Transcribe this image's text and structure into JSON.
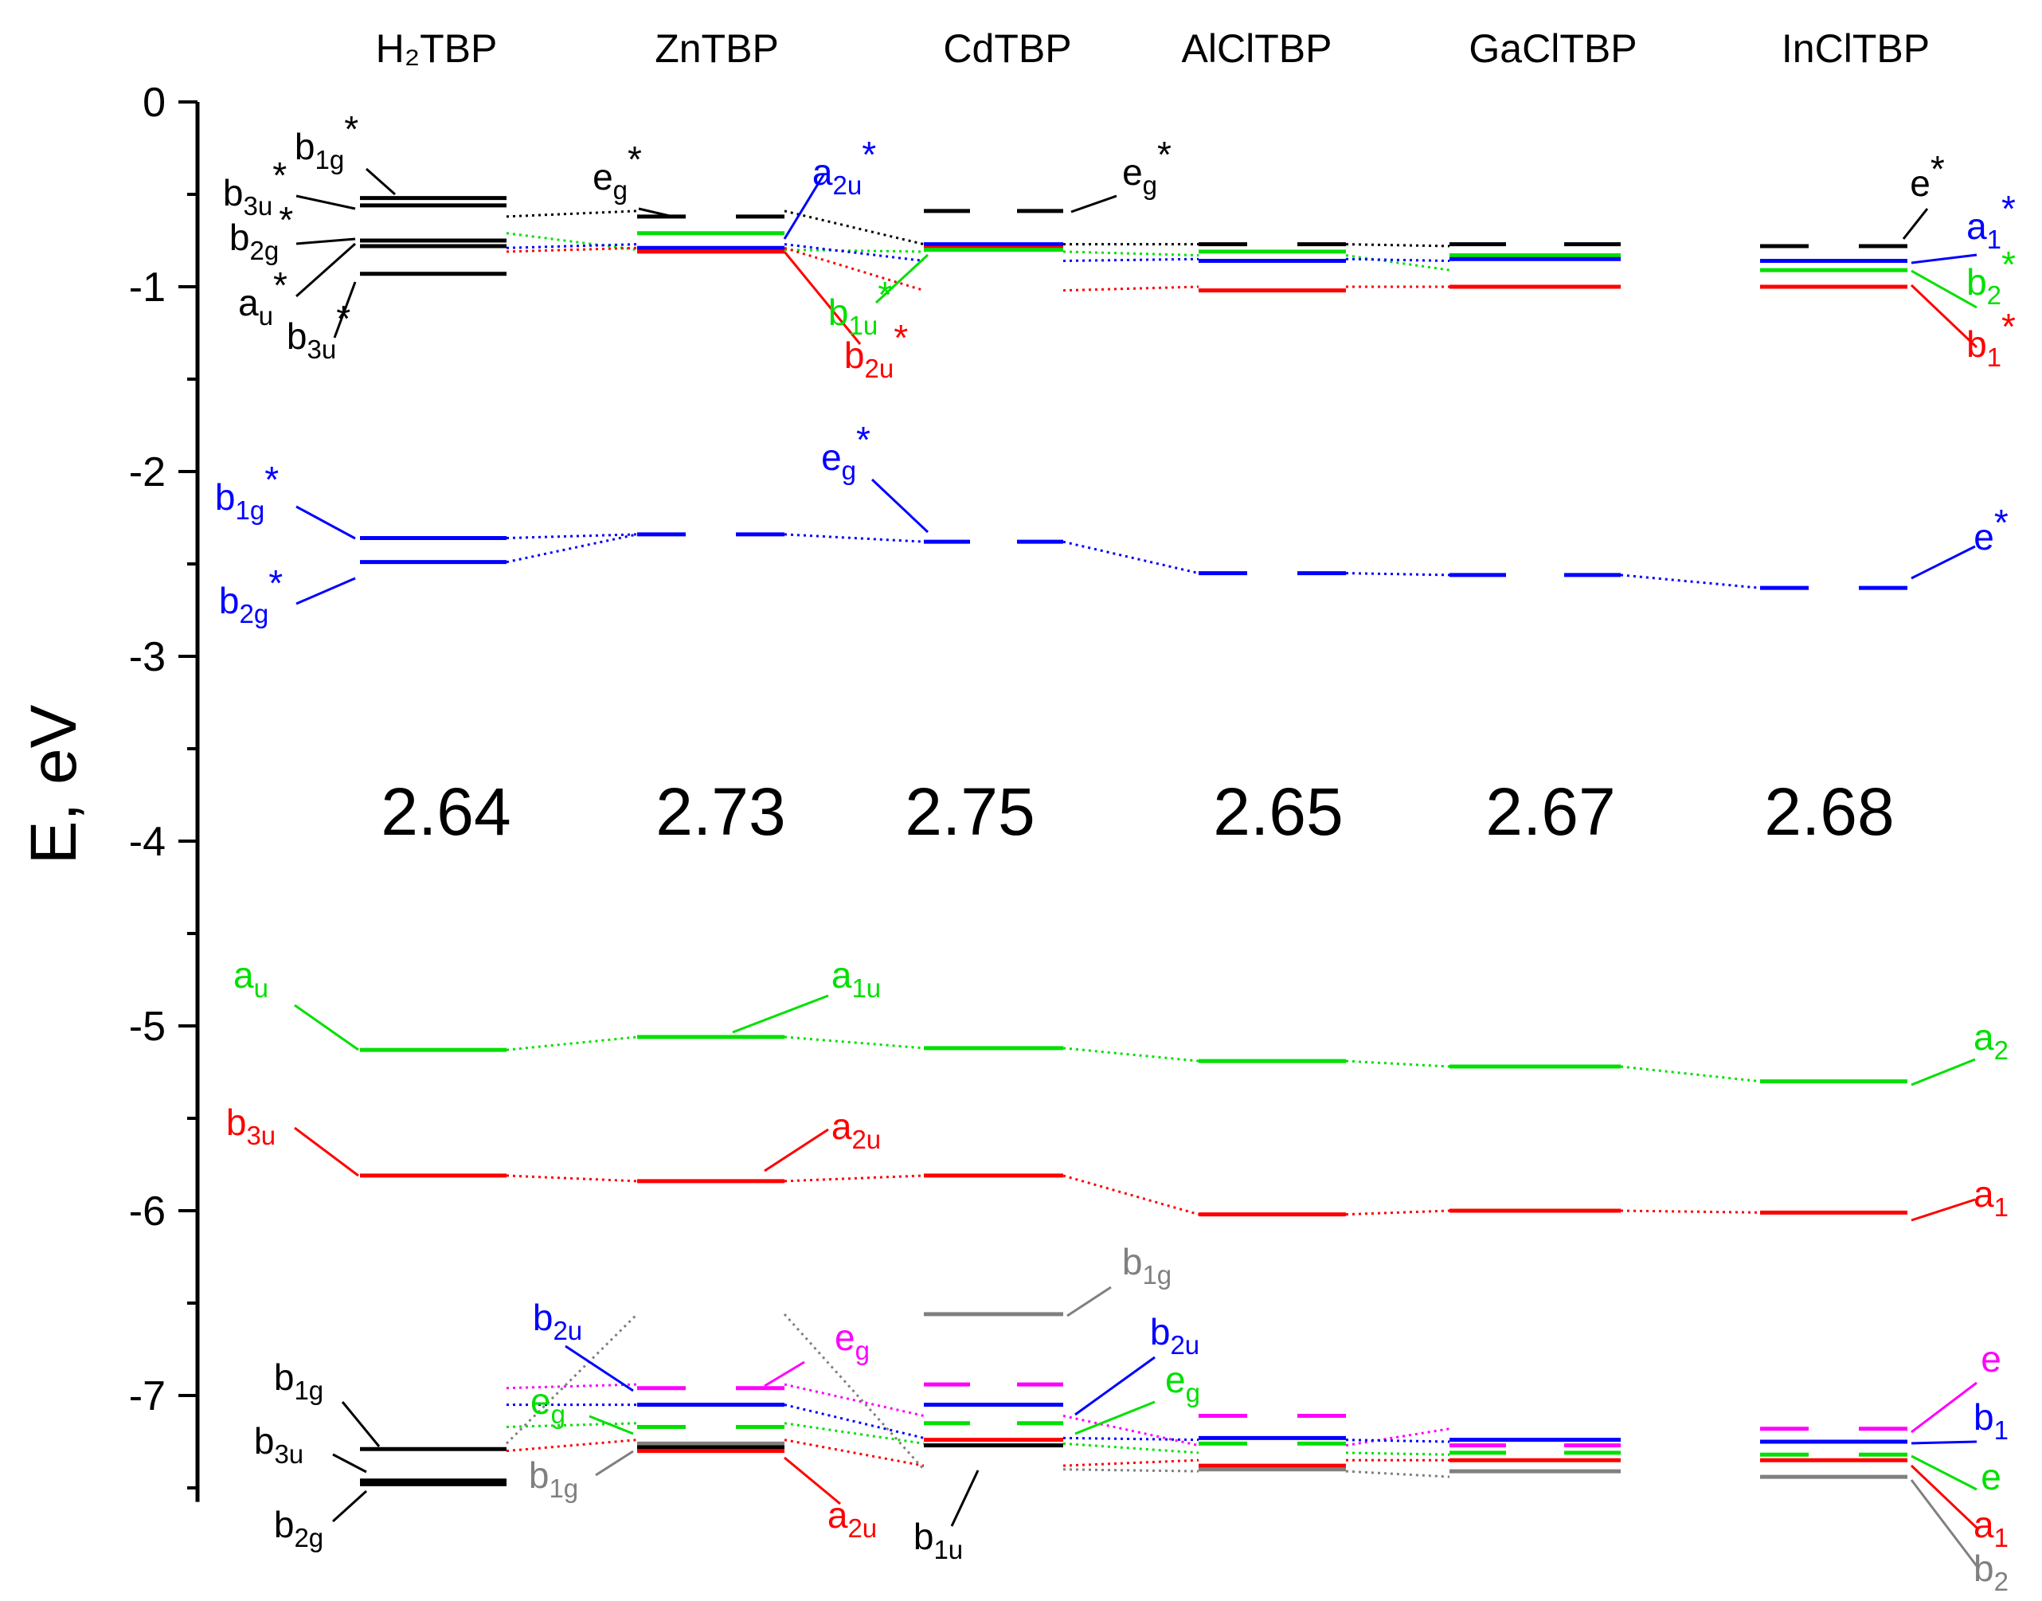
{
  "chart_data": {
    "type": "energy-level-diagram",
    "ylabel": "E, eV",
    "ylim": [
      -7.55,
      0
    ],
    "yticks": [
      0,
      -1,
      -2,
      -3,
      -4,
      -5,
      -6,
      -7
    ],
    "tick_labels": [
      "0",
      "-1",
      "-2",
      "-3",
      "-4",
      "-5",
      "-6",
      "-7"
    ],
    "colors": {
      "black": "#000000",
      "blue": "#0000ff",
      "green": "#00e000",
      "red": "#ff0000",
      "magenta": "#ff00ff",
      "gray": "#808080"
    },
    "compounds": [
      {
        "name": "H₂TBP",
        "gap": "2.64"
      },
      {
        "name": "ZnTBP",
        "gap": "2.73"
      },
      {
        "name": "CdTBP",
        "gap": "2.75"
      },
      {
        "name": "AlClTBP",
        "gap": "2.65"
      },
      {
        "name": "GaClTBP",
        "gap": "2.67"
      },
      {
        "name": "InClTBP",
        "gap": "2.68"
      }
    ],
    "levels": [
      {
        "compound": "H₂TBP",
        "energy": -0.52,
        "color": "black",
        "style": "solid",
        "label": "b1g*"
      },
      {
        "compound": "H₂TBP",
        "energy": -0.56,
        "color": "black",
        "style": "solid",
        "label": "b3u*"
      },
      {
        "compound": "H₂TBP",
        "energy": -0.75,
        "color": "black",
        "style": "solid",
        "label": "b2g*"
      },
      {
        "compound": "H₂TBP",
        "energy": -0.78,
        "color": "black",
        "style": "solid",
        "label": "au*"
      },
      {
        "compound": "H₂TBP",
        "energy": -0.93,
        "color": "black",
        "style": "solid",
        "label": "b3u*"
      },
      {
        "compound": "H₂TBP",
        "energy": -2.36,
        "color": "blue",
        "style": "solid",
        "label": "b1g*"
      },
      {
        "compound": "H₂TBP",
        "energy": -2.49,
        "color": "blue",
        "style": "solid",
        "label": "b2g*"
      },
      {
        "compound": "H₂TBP",
        "energy": -5.13,
        "color": "green",
        "style": "solid",
        "label": "au"
      },
      {
        "compound": "H₂TBP",
        "energy": -5.81,
        "color": "red",
        "style": "solid",
        "label": "b3u"
      },
      {
        "compound": "H₂TBP",
        "energy": -7.29,
        "color": "black",
        "style": "solid",
        "label": "b1g"
      },
      {
        "compound": "H₂TBP",
        "energy": -7.46,
        "color": "black",
        "style": "solid",
        "label": "b3u"
      },
      {
        "compound": "H₂TBP",
        "energy": -7.48,
        "color": "black",
        "style": "solid",
        "label": "b2g"
      },
      {
        "compound": "ZnTBP",
        "energy": -0.62,
        "color": "black",
        "style": "dashed",
        "label": "eg*"
      },
      {
        "compound": "ZnTBP",
        "energy": -0.71,
        "color": "green",
        "style": "solid",
        "label": "b1u*"
      },
      {
        "compound": "ZnTBP",
        "energy": -0.79,
        "color": "blue",
        "style": "solid",
        "label": "a2u*"
      },
      {
        "compound": "ZnTBP",
        "energy": -0.81,
        "color": "red",
        "style": "solid",
        "label": "b2u*"
      },
      {
        "compound": "ZnTBP",
        "energy": -2.34,
        "color": "blue",
        "style": "dashed",
        "label": "eg*"
      },
      {
        "compound": "ZnTBP",
        "energy": -5.06,
        "color": "green",
        "style": "solid",
        "label": "a1u"
      },
      {
        "compound": "ZnTBP",
        "energy": -5.84,
        "color": "red",
        "style": "solid",
        "label": "a2u"
      },
      {
        "compound": "ZnTBP",
        "energy": -6.96,
        "color": "magenta",
        "style": "dashed",
        "label": "eg"
      },
      {
        "compound": "ZnTBP",
        "energy": -7.05,
        "color": "blue",
        "style": "solid",
        "label": "b2u"
      },
      {
        "compound": "ZnTBP",
        "energy": -7.17,
        "color": "green",
        "style": "dashed",
        "label": "eg"
      },
      {
        "compound": "ZnTBP",
        "energy": -7.26,
        "color": "gray",
        "style": "solid",
        "label": "b1g"
      },
      {
        "compound": "ZnTBP",
        "energy": -7.28,
        "color": "black",
        "style": "solid",
        "label": "b1u"
      },
      {
        "compound": "ZnTBP",
        "energy": -7.3,
        "color": "red",
        "style": "solid",
        "label": "a2u"
      },
      {
        "compound": "CdTBP",
        "energy": -0.59,
        "color": "black",
        "style": "dashed",
        "label": "eg*"
      },
      {
        "compound": "CdTBP",
        "energy": -0.77,
        "color": "blue",
        "style": "solid",
        "label": "a2u*"
      },
      {
        "compound": "CdTBP",
        "energy": -0.79,
        "color": "red",
        "style": "solid",
        "label": "b2u*"
      },
      {
        "compound": "CdTBP",
        "energy": -0.8,
        "color": "green",
        "style": "solid",
        "label": "b1u*"
      },
      {
        "compound": "CdTBP",
        "energy": -2.38,
        "color": "blue",
        "style": "dashed",
        "label": "eg*"
      },
      {
        "compound": "CdTBP",
        "energy": -5.12,
        "color": "green",
        "style": "solid",
        "label": "a1u"
      },
      {
        "compound": "CdTBP",
        "energy": -5.81,
        "color": "red",
        "style": "solid",
        "label": "a2u"
      },
      {
        "compound": "CdTBP",
        "energy": -6.56,
        "color": "gray",
        "style": "solid",
        "label": "b1g"
      },
      {
        "compound": "CdTBP",
        "energy": -6.94,
        "color": "magenta",
        "style": "dashed",
        "label": "eg"
      },
      {
        "compound": "CdTBP",
        "energy": -7.05,
        "color": "blue",
        "style": "solid",
        "label": "b2u"
      },
      {
        "compound": "CdTBP",
        "energy": -7.15,
        "color": "green",
        "style": "dashed",
        "label": "eg"
      },
      {
        "compound": "CdTBP",
        "energy": -7.24,
        "color": "red",
        "style": "solid",
        "label": "a2u"
      },
      {
        "compound": "CdTBP",
        "energy": -7.27,
        "color": "black",
        "style": "solid",
        "label": "b1u"
      },
      {
        "compound": "AlClTBP",
        "energy": -0.77,
        "color": "black",
        "style": "dashed",
        "label": "e*"
      },
      {
        "compound": "AlClTBP",
        "energy": -0.81,
        "color": "green",
        "style": "solid",
        "label": "b2*"
      },
      {
        "compound": "AlClTBP",
        "energy": -0.86,
        "color": "blue",
        "style": "solid",
        "label": "a1*"
      },
      {
        "compound": "AlClTBP",
        "energy": -1.02,
        "color": "red",
        "style": "solid",
        "label": "b1*"
      },
      {
        "compound": "AlClTBP",
        "energy": -2.55,
        "color": "blue",
        "style": "dashed",
        "label": "e*"
      },
      {
        "compound": "AlClTBP",
        "energy": -5.19,
        "color": "green",
        "style": "solid",
        "label": "a2"
      },
      {
        "compound": "AlClTBP",
        "energy": -6.02,
        "color": "red",
        "style": "solid",
        "label": "a1"
      },
      {
        "compound": "AlClTBP",
        "energy": -7.11,
        "color": "magenta",
        "style": "dashed",
        "label": "e"
      },
      {
        "compound": "AlClTBP",
        "energy": -7.23,
        "color": "blue",
        "style": "solid",
        "label": "b1"
      },
      {
        "compound": "AlClTBP",
        "energy": -7.26,
        "color": "green",
        "style": "dashed",
        "label": "e"
      },
      {
        "compound": "AlClTBP",
        "energy": -7.38,
        "color": "red",
        "style": "solid",
        "label": "a1"
      },
      {
        "compound": "AlClTBP",
        "energy": -7.4,
        "color": "gray",
        "style": "solid",
        "label": "b2"
      },
      {
        "compound": "GaClTBP",
        "energy": -0.77,
        "color": "black",
        "style": "dashed",
        "label": "e*"
      },
      {
        "compound": "GaClTBP",
        "energy": -0.83,
        "color": "green",
        "style": "solid",
        "label": "b2*"
      },
      {
        "compound": "GaClTBP",
        "energy": -0.85,
        "color": "blue",
        "style": "solid",
        "label": "a1*"
      },
      {
        "compound": "GaClTBP",
        "energy": -1.0,
        "color": "red",
        "style": "solid",
        "label": "b1*"
      },
      {
        "compound": "GaClTBP",
        "energy": -2.56,
        "color": "blue",
        "style": "dashed",
        "label": "e*"
      },
      {
        "compound": "GaClTBP",
        "energy": -5.22,
        "color": "green",
        "style": "solid",
        "label": "a2"
      },
      {
        "compound": "GaClTBP",
        "energy": -6.0,
        "color": "red",
        "style": "solid",
        "label": "a1"
      },
      {
        "compound": "GaClTBP",
        "energy": -7.24,
        "color": "blue",
        "style": "solid",
        "label": "b1"
      },
      {
        "compound": "GaClTBP",
        "energy": -7.27,
        "color": "magenta",
        "style": "dashed",
        "label": "e"
      },
      {
        "compound": "GaClTBP",
        "energy": -7.31,
        "color": "green",
        "style": "dashed",
        "label": "e"
      },
      {
        "compound": "GaClTBP",
        "energy": -7.35,
        "color": "red",
        "style": "solid",
        "label": "a1"
      },
      {
        "compound": "GaClTBP",
        "energy": -7.41,
        "color": "gray",
        "style": "solid",
        "label": "b2"
      },
      {
        "compound": "InClTBP",
        "energy": -0.78,
        "color": "black",
        "style": "dashed",
        "label": "e*"
      },
      {
        "compound": "InClTBP",
        "energy": -0.86,
        "color": "blue",
        "style": "solid",
        "label": "a1*"
      },
      {
        "compound": "InClTBP",
        "energy": -0.91,
        "color": "green",
        "style": "solid",
        "label": "b2*"
      },
      {
        "compound": "InClTBP",
        "energy": -1.0,
        "color": "red",
        "style": "solid",
        "label": "b1*"
      },
      {
        "compound": "InClTBP",
        "energy": -2.63,
        "color": "blue",
        "style": "dashed",
        "label": "e*"
      },
      {
        "compound": "InClTBP",
        "energy": -5.3,
        "color": "green",
        "style": "solid",
        "label": "a2"
      },
      {
        "compound": "InClTBP",
        "energy": -6.01,
        "color": "red",
        "style": "solid",
        "label": "a1"
      },
      {
        "compound": "InClTBP",
        "energy": -7.18,
        "color": "magenta",
        "style": "dashed",
        "label": "e"
      },
      {
        "compound": "InClTBP",
        "energy": -7.25,
        "color": "blue",
        "style": "solid",
        "label": "b1"
      },
      {
        "compound": "InClTBP",
        "energy": -7.32,
        "color": "green",
        "style": "dashed",
        "label": "e"
      },
      {
        "compound": "InClTBP",
        "energy": -7.35,
        "color": "red",
        "style": "solid",
        "label": "a1"
      },
      {
        "compound": "InClTBP",
        "energy": -7.44,
        "color": "gray",
        "style": "solid",
        "label": "b2"
      }
    ],
    "correlation_lines": [
      {
        "color": "blue",
        "energies": [
          -2.36,
          -2.34
        ]
      },
      {
        "color": "blue",
        "energies": [
          -2.49,
          -2.34,
          -2.38,
          -2.55,
          -2.56,
          -2.63
        ]
      },
      {
        "color": "green",
        "energies": [
          -5.13,
          -5.06,
          -5.12,
          -5.19,
          -5.22,
          -5.3
        ]
      },
      {
        "color": "red",
        "energies": [
          -5.81,
          -5.84,
          -5.81,
          -6.02,
          -6.0,
          -6.01
        ]
      },
      {
        "color": "black",
        "energies": [
          -0.62,
          -0.59,
          -0.77,
          -0.77,
          -0.78
        ]
      },
      {
        "color": "green",
        "energies": [
          -0.71,
          -0.8,
          -0.81,
          -0.83,
          -0.91
        ]
      },
      {
        "color": "blue",
        "energies": [
          -0.79,
          -0.77,
          -0.86,
          -0.85,
          -0.86
        ]
      },
      {
        "color": "red",
        "energies": [
          -0.81,
          -0.79,
          -1.02,
          -1.0,
          -1.0
        ]
      },
      {
        "color": "magenta",
        "energies": [
          -6.96,
          -6.94,
          -7.11,
          -7.27,
          -7.18
        ]
      },
      {
        "color": "blue",
        "energies": [
          -7.05,
          -7.05,
          -7.23,
          -7.24,
          -7.25
        ]
      },
      {
        "color": "green",
        "energies": [
          -7.17,
          -7.15,
          -7.26,
          -7.31,
          -7.32
        ]
      },
      {
        "color": "red",
        "energies": [
          -7.3,
          -7.24,
          -7.38,
          -7.35,
          -7.35
        ]
      },
      {
        "color": "gray",
        "energies": [
          -7.26,
          -6.56,
          -7.4,
          -7.41,
          -7.44
        ]
      }
    ],
    "annotations": [
      {
        "text": "b",
        "sub": "1g",
        "sup": "*",
        "color": "black"
      },
      {
        "text": "b",
        "sub": "3u",
        "sup": "*",
        "color": "black"
      },
      {
        "text": "b",
        "sub": "2g",
        "sup": "*",
        "color": "black"
      },
      {
        "text": "a",
        "sub": "u",
        "sup": "*",
        "color": "black"
      },
      {
        "text": "b",
        "sub": "3u",
        "sup": "*",
        "color": "black"
      },
      {
        "text": "b",
        "sub": "1g",
        "sup": "*",
        "color": "blue"
      },
      {
        "text": "b",
        "sub": "2g",
        "sup": "*",
        "color": "blue"
      },
      {
        "text": "a",
        "sub": "u",
        "sup": "",
        "color": "green"
      },
      {
        "text": "b",
        "sub": "3u",
        "sup": "",
        "color": "red"
      },
      {
        "text": "b",
        "sub": "1g",
        "sup": "",
        "color": "black"
      },
      {
        "text": "b",
        "sub": "3u",
        "sup": "",
        "color": "black"
      },
      {
        "text": "b",
        "sub": "2g",
        "sup": "",
        "color": "black"
      },
      {
        "text": "e",
        "sub": "g",
        "sup": "*",
        "color": "black"
      },
      {
        "text": "a",
        "sub": "2u",
        "sup": "*",
        "color": "blue"
      },
      {
        "text": "e",
        "sub": "g",
        "sup": "*",
        "color": "black"
      },
      {
        "text": "b",
        "sub": "1u",
        "sup": "*",
        "color": "green"
      },
      {
        "text": "b",
        "sub": "2u",
        "sup": "*",
        "color": "red"
      },
      {
        "text": "e",
        "sub": "g",
        "sup": "*",
        "color": "blue"
      },
      {
        "text": "a",
        "sub": "1u",
        "sup": "",
        "color": "green"
      },
      {
        "text": "a",
        "sub": "2u",
        "sup": "",
        "color": "red"
      },
      {
        "text": "b",
        "sub": "2u",
        "sup": "",
        "color": "blue"
      },
      {
        "text": "e",
        "sub": "g",
        "sup": "",
        "color": "green"
      },
      {
        "text": "b",
        "sub": "1g",
        "sup": "",
        "color": "gray"
      },
      {
        "text": "e",
        "sub": "g",
        "sup": "",
        "color": "magenta"
      },
      {
        "text": "a",
        "sub": "2u",
        "sup": "",
        "color": "red"
      },
      {
        "text": "b",
        "sub": "1u",
        "sup": "",
        "color": "black"
      },
      {
        "text": "b",
        "sub": "1g",
        "sup": "",
        "color": "gray"
      },
      {
        "text": "b",
        "sub": "2u",
        "sup": "",
        "color": "blue"
      },
      {
        "text": "e",
        "sub": "g",
        "sup": "",
        "color": "green"
      },
      {
        "text": "e",
        "sub": "",
        "sup": "*",
        "color": "black"
      },
      {
        "text": "a",
        "sub": "1",
        "sup": "*",
        "color": "blue"
      },
      {
        "text": "b",
        "sub": "2",
        "sup": "*",
        "color": "green"
      },
      {
        "text": "b",
        "sub": "1",
        "sup": "*",
        "color": "red"
      },
      {
        "text": "e",
        "sub": "",
        "sup": "*",
        "color": "blue"
      },
      {
        "text": "a",
        "sub": "2",
        "sup": "",
        "color": "green"
      },
      {
        "text": "a",
        "sub": "1",
        "sup": "",
        "color": "red"
      },
      {
        "text": "e",
        "sub": "",
        "sup": "",
        "color": "magenta"
      },
      {
        "text": "b",
        "sub": "1",
        "sup": "",
        "color": "blue"
      },
      {
        "text": "e",
        "sub": "",
        "sup": "",
        "color": "green"
      },
      {
        "text": "a",
        "sub": "1",
        "sup": "",
        "color": "red"
      },
      {
        "text": "b",
        "sub": "2",
        "sup": "",
        "color": "gray"
      }
    ]
  }
}
